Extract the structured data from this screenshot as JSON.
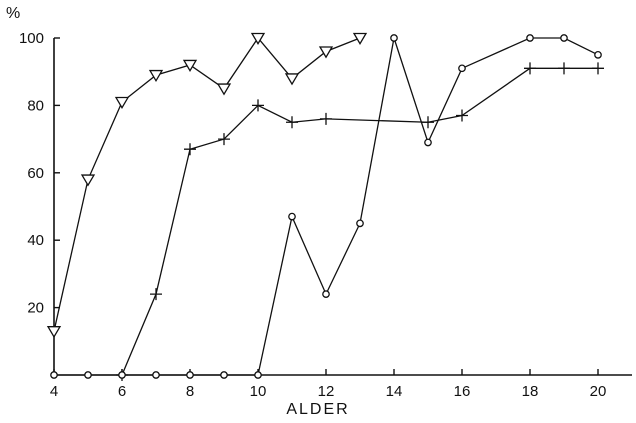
{
  "chart_data": {
    "type": "line",
    "title": "",
    "xlabel": "ALDER",
    "ylabel": "%",
    "xlim": [
      4,
      21
    ],
    "ylim": [
      0,
      100
    ],
    "x_ticks": [
      4,
      6,
      8,
      10,
      12,
      14,
      16,
      18,
      20
    ],
    "y_ticks": [
      20,
      40,
      60,
      80,
      100
    ],
    "grid": false,
    "legend": "none",
    "series": [
      {
        "marker": "triangle-down",
        "x": [
          4,
          5,
          6,
          7,
          8,
          9,
          10,
          11,
          12,
          13
        ],
        "y": [
          13,
          58,
          81,
          89,
          92,
          85,
          100,
          88,
          96,
          100
        ]
      },
      {
        "marker": "plus",
        "x": [
          6,
          7,
          8,
          9,
          10,
          11,
          12,
          15,
          16,
          18,
          19,
          20
        ],
        "y": [
          0,
          24,
          67,
          70,
          80,
          75,
          76,
          75,
          77,
          91,
          91,
          91
        ]
      },
      {
        "marker": "circle",
        "x": [
          4,
          5,
          6,
          7,
          8,
          9,
          10,
          11,
          12,
          13,
          14,
          15,
          16,
          18,
          19,
          20
        ],
        "y": [
          0,
          0,
          0,
          0,
          0,
          0,
          0,
          47,
          24,
          45,
          100,
          69,
          91,
          100,
          100,
          95
        ]
      }
    ]
  }
}
